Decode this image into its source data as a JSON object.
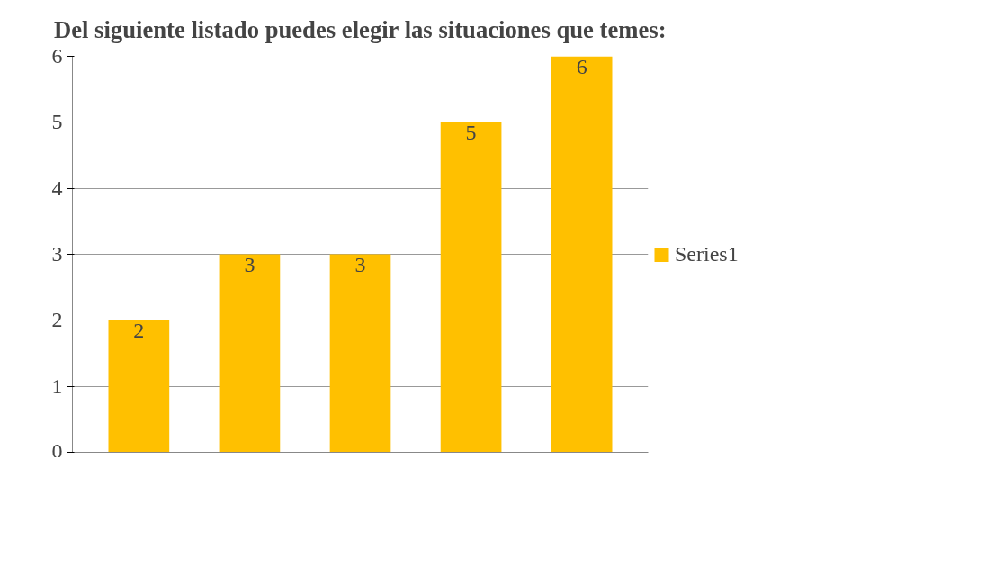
{
  "chart_data": {
    "type": "bar",
    "title": "Del siguiente listado puedes elegir las situaciones que temes:",
    "categories": [
      null,
      null,
      null,
      null,
      null
    ],
    "series": [
      {
        "name": "Series1",
        "color": "#ffc000",
        "values": [
          2,
          3,
          3,
          5,
          6
        ]
      }
    ],
    "ylim": [
      0,
      6
    ],
    "yticks": [
      0,
      1,
      2,
      3,
      4,
      5,
      6
    ],
    "grid": "y",
    "legend": "right",
    "data_labels": true
  }
}
